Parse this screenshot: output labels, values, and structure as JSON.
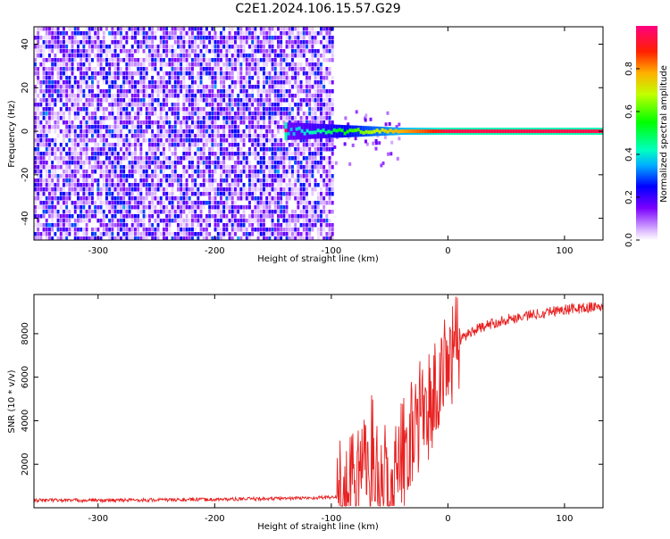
{
  "title": "C2E1.2024.106.15.57.G29",
  "chart_data": [
    {
      "type": "heatmap",
      "xlabel": "Height of straight line (km)",
      "ylabel": "Frequency (Hz)",
      "xlim": [
        -355,
        133
      ],
      "ylim": [
        -50,
        48
      ],
      "x_ticks": [
        -300,
        -200,
        -100,
        0,
        100
      ],
      "y_ticks": [
        -40,
        -20,
        0,
        20,
        40
      ],
      "x_tick_labels": [
        "-300",
        "-200",
        "-100",
        "0",
        "100"
      ],
      "y_tick_labels": [
        "-40",
        "-20",
        "0",
        "20",
        "40"
      ],
      "colorbar": {
        "label": "Normalized spectral amplitude",
        "range": [
          0,
          1
        ],
        "ticks": [
          0.0,
          0.2,
          0.4,
          0.6,
          0.8
        ],
        "tick_labels": [
          "0.0",
          "0.2",
          "0.4",
          "0.6",
          "0.8"
        ]
      },
      "signal_line": {
        "frequency": 0,
        "x_range": [
          -140,
          133
        ],
        "amplitude_by_height": [
          {
            "x": -140,
            "amp": 0.35
          },
          {
            "x": -110,
            "amp": 0.45
          },
          {
            "x": -80,
            "amp": 0.6
          },
          {
            "x": -50,
            "amp": 0.75
          },
          {
            "x": -20,
            "amp": 0.85
          },
          {
            "x": 0,
            "amp": 0.95
          },
          {
            "x": 133,
            "amp": 0.95
          }
        ]
      },
      "noise_region": {
        "x_range": [
          -355,
          -100
        ],
        "y_range": [
          -50,
          48
        ],
        "amp_range": [
          0.02,
          0.3
        ]
      }
    },
    {
      "type": "line",
      "xlabel": "Height of straight line (km)",
      "ylabel": "SNR (10 * v/v)",
      "xlim": [
        -355,
        133
      ],
      "ylim": [
        0,
        9800
      ],
      "x_ticks": [
        -300,
        -200,
        -100,
        0,
        100
      ],
      "y_ticks": [
        2000,
        4000,
        6000,
        8000
      ],
      "x_tick_labels": [
        "-300",
        "-200",
        "-100",
        "0",
        "100"
      ],
      "y_tick_labels": [
        "2000",
        "4000",
        "6000",
        "8000"
      ],
      "color": "#e82020",
      "series": [
        {
          "x": [
            -355,
            -300,
            -250,
            -200,
            -150,
            -120,
            -100,
            -90,
            -80,
            -70,
            -65,
            -60,
            -55,
            -50,
            -45,
            -40,
            -35,
            -30,
            -25,
            -20,
            -15,
            -10,
            -5,
            0,
            5,
            10,
            20,
            30,
            40,
            50,
            60,
            70,
            80,
            90,
            100,
            110,
            120,
            133
          ],
          "values": [
            350,
            340,
            360,
            380,
            420,
            450,
            480,
            520,
            800,
            1800,
            2400,
            1800,
            1200,
            600,
            1500,
            2500,
            3000,
            3500,
            4200,
            4500,
            4800,
            5200,
            5800,
            6600,
            7200,
            7700,
            8100,
            8300,
            8500,
            8650,
            8750,
            8850,
            8950,
            9050,
            9100,
            9150,
            9200,
            9250
          ]
        }
      ]
    }
  ]
}
